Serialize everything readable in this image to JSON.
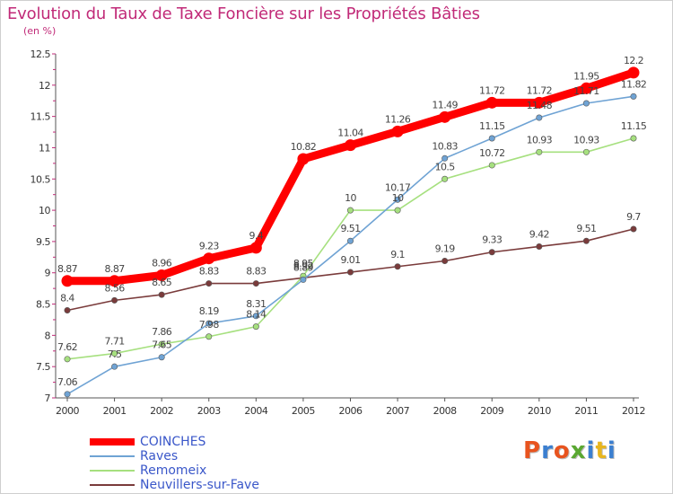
{
  "chart_data": {
    "type": "line",
    "title": "Evolution du Taux de Taxe Foncière sur les Propriétés Bâties",
    "subtitle": "(en %)",
    "xlabel": "",
    "ylabel": "(en %)",
    "x": [
      "2000",
      "2001",
      "2002",
      "2003",
      "2004",
      "2005",
      "2006",
      "2007",
      "2008",
      "2009",
      "2010",
      "2011",
      "2012"
    ],
    "ylim": [
      7,
      12.5
    ],
    "yticks": [
      "7",
      "7.5",
      "8",
      "8.5",
      "9",
      "9.5",
      "10",
      "10.5",
      "11",
      "11.5",
      "12",
      "12.5"
    ],
    "legend_position": "bottom-left",
    "series": [
      {
        "name": "COINCHES",
        "color": "#ff0000",
        "values": [
          8.87,
          8.87,
          8.96,
          9.23,
          9.4,
          10.82,
          11.04,
          11.26,
          11.49,
          11.72,
          11.72,
          11.95,
          12.2
        ],
        "labels": [
          "8.87",
          "8.87",
          "8.96",
          "9.23",
          "9.4",
          "10.82",
          "11.04",
          "11.26",
          "11.49",
          "11.72",
          "11.72",
          "11.95",
          "12.2"
        ]
      },
      {
        "name": "Raves",
        "color": "#6fa3d4",
        "values": [
          7.06,
          7.5,
          7.65,
          8.19,
          8.31,
          8.89,
          9.51,
          10.17,
          10.83,
          11.15,
          11.48,
          11.71,
          11.82
        ],
        "labels": [
          "7.06",
          "7.5",
          "7.65",
          "8.19",
          "8.31",
          "8.89",
          "9.51",
          "10.17",
          "10.83",
          "11.15",
          "11.48",
          "11.71",
          "11.82"
        ]
      },
      {
        "name": "Remomeix",
        "color": "#a6e07f",
        "values": [
          7.62,
          7.71,
          7.86,
          7.98,
          8.14,
          8.95,
          10,
          10,
          10.5,
          10.72,
          10.93,
          10.93,
          11.15
        ],
        "labels": [
          "7.62",
          "7.71",
          "7.86",
          "7.98",
          "8.14",
          "8.95",
          "10",
          "10",
          "10.5",
          "10.72",
          "10.93",
          "10.93",
          "11.15"
        ]
      },
      {
        "name": "Neuvillers-sur-Fave",
        "color": "#7a3b3b",
        "values": [
          8.4,
          8.56,
          8.65,
          8.83,
          8.83,
          8.92,
          9.01,
          9.1,
          9.19,
          9.33,
          9.42,
          9.51,
          9.7
        ],
        "labels": [
          "8.4",
          "8.56",
          "8.65",
          "8.83",
          "8.83",
          "8.92",
          "9.01",
          "9.1",
          "9.19",
          "9.33",
          "9.42",
          "9.51",
          "9.7"
        ]
      }
    ]
  },
  "legend": {
    "items": [
      "COINCHES",
      "Raves",
      "Remomeix",
      "Neuvillers-sur-Fave"
    ]
  },
  "logo": {
    "letters": [
      "P",
      "r",
      "o",
      "x",
      "i",
      "t",
      "i"
    ],
    "colors": [
      "#e8541f",
      "#3b7fd0",
      "#e8541f",
      "#5aa832",
      "#3b7fd0",
      "#e8b61f",
      "#3b7fd0"
    ]
  }
}
